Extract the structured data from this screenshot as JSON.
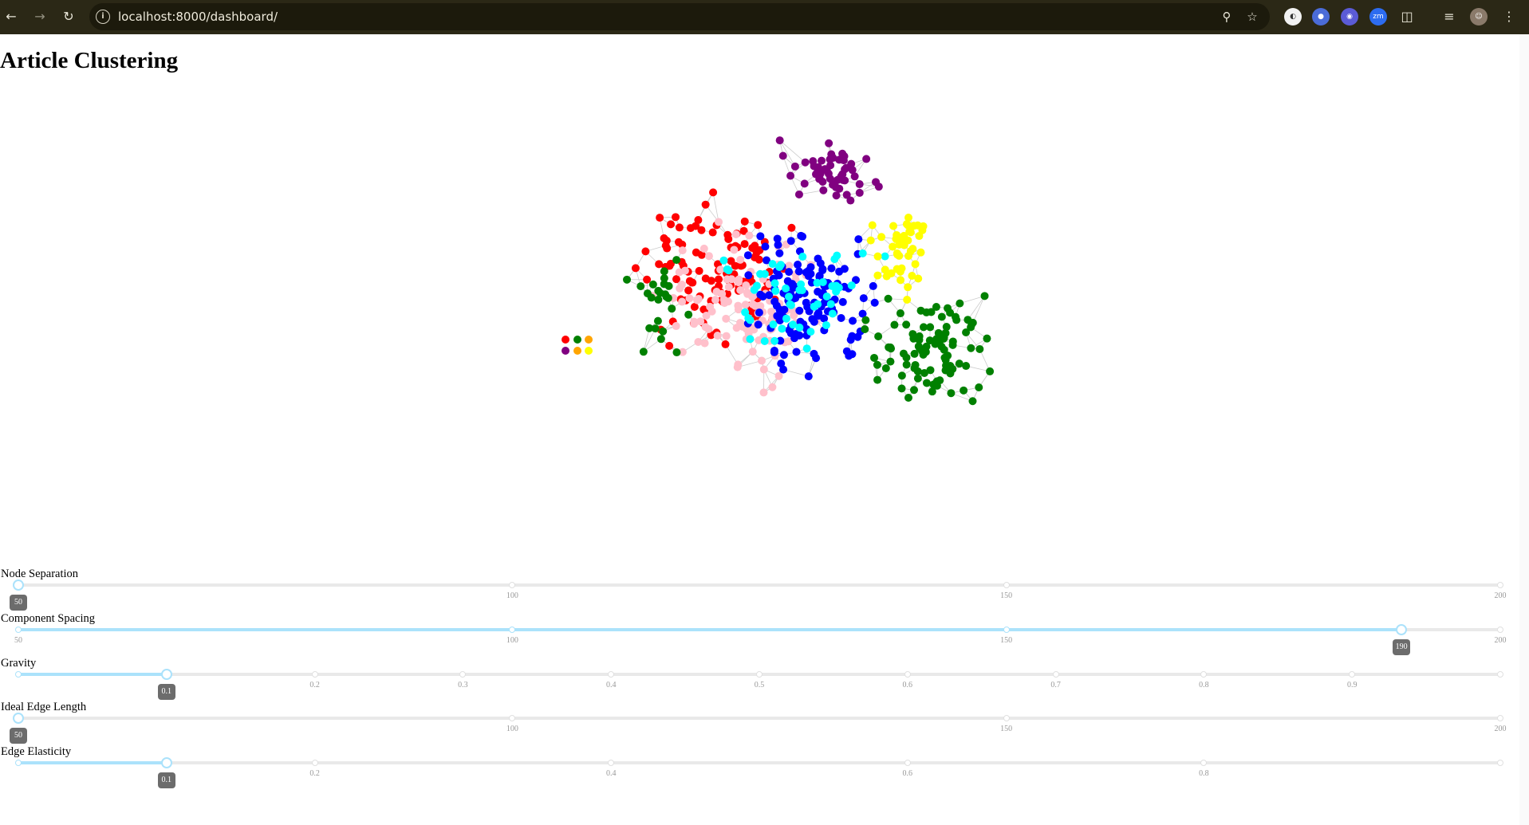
{
  "browser": {
    "url": "localhost:8000/dashboard/",
    "icons": [
      "back-icon",
      "forward-icon",
      "reload-icon",
      "site-info-icon",
      "zoom-icon",
      "bookmark-star-icon",
      "extension-icons",
      "puzzle-icon",
      "media-icon",
      "profile-avatar",
      "kebab-menu-icon"
    ],
    "ext_zm_label": "zm"
  },
  "page": {
    "title": "Article Clustering"
  },
  "graph": {
    "cluster_colors": {
      "purple": "#800080",
      "red": "#ff0000",
      "pink": "#ffc0cb",
      "blue": "#0000ff",
      "cyan": "#00ffff",
      "green": "#008000",
      "yellow": "#ffff00",
      "orange": "#ffa500"
    },
    "edge_color": "#cccccc"
  },
  "sliders": [
    {
      "label": "Node Separation",
      "min": 50,
      "max": 200,
      "value": 50,
      "marks": [
        "50",
        "100",
        "150",
        "200"
      ],
      "value_label": "50"
    },
    {
      "label": "Component Spacing",
      "min": 50,
      "max": 200,
      "value": 190,
      "marks": [
        "50",
        "100",
        "150",
        "200"
      ],
      "value_label": "190"
    },
    {
      "label": "Gravity",
      "min": 0,
      "max": 1,
      "value": 0.1,
      "marks": [
        "0.1",
        "0.2",
        "0.3",
        "0.4",
        "0.5",
        "0.6",
        "0.7",
        "0.8",
        "0.9"
      ],
      "value_label": "0.1"
    },
    {
      "label": "Ideal Edge Length",
      "min": 50,
      "max": 200,
      "value": 50,
      "marks": [
        "50",
        "100",
        "150",
        "200"
      ],
      "value_label": "50"
    },
    {
      "label": "Edge Elasticity",
      "min": 0,
      "max": 1,
      "value": 0.1,
      "marks": [
        "0.2",
        "0.4",
        "0.6",
        "0.8"
      ],
      "value_label": "0.1"
    }
  ],
  "accent_color": "#abe2fb"
}
